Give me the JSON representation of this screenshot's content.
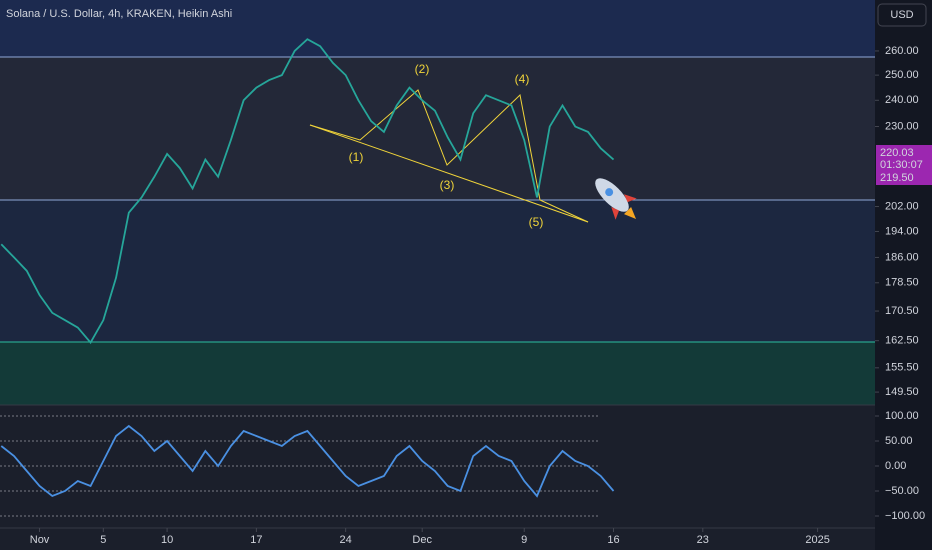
{
  "header": {
    "title": "Solana / U.S. Dollar, 4h, KRAKEN, Heikin Ashi",
    "currency": "USD"
  },
  "price_labels": [
    "220.03",
    "01:30:07",
    "219.50"
  ],
  "annotations": [
    "(1)",
    "(2)",
    "(3)",
    "(4)",
    "(5)"
  ],
  "chart_data": [
    {
      "type": "line",
      "log_scale": true,
      "x": [
        -3,
        -2,
        -1,
        0,
        1,
        2,
        3,
        4,
        5,
        6,
        7,
        8,
        9,
        10,
        11,
        12,
        13,
        14,
        15,
        16,
        17,
        18,
        19,
        20,
        21,
        22,
        23,
        24,
        25,
        26,
        27,
        28,
        29,
        30,
        31,
        32,
        33,
        34,
        35,
        36,
        37,
        38,
        39,
        40,
        41,
        42,
        43,
        44,
        45
      ],
      "series": [
        {
          "color": "#26a69a",
          "values": [
            190,
            186,
            182,
            175,
            170,
            168,
            166,
            162,
            168,
            180,
            200,
            205,
            212,
            220,
            215,
            208,
            218,
            212,
            225,
            240,
            245,
            248,
            250,
            260,
            265,
            262,
            255,
            250,
            240,
            232,
            228,
            238,
            245,
            240,
            236,
            226,
            218,
            235,
            242,
            240,
            238,
            225,
            205,
            230,
            238,
            230,
            228,
            222,
            218
          ]
        }
      ],
      "xlim": [
        -3.1,
        65.5
      ],
      "xticks": [
        {
          "value": 0,
          "label": "Nov"
        },
        5,
        10,
        17,
        24,
        {
          "value": 30,
          "label": "Dec"
        },
        {
          "value": 38,
          "label": "9"
        },
        {
          "value": 45,
          "label": "16"
        },
        {
          "value": 52,
          "label": "23"
        },
        {
          "value": 61,
          "label": "2025"
        }
      ],
      "ylim": [
        146.4,
        282.4
      ],
      "yticks": [
        {
          "value": 260,
          "label": "260.00"
        },
        {
          "value": 250,
          "label": "250.00"
        },
        {
          "value": 240,
          "label": "240.00"
        },
        {
          "value": 230,
          "label": "230.00"
        },
        {
          "value": 202,
          "label": "202.00"
        },
        {
          "value": 194,
          "label": "194.00"
        },
        {
          "value": 186,
          "label": "186.00"
        },
        {
          "value": 178.5,
          "label": "178.50"
        },
        {
          "value": 170.5,
          "label": "170.50"
        },
        {
          "value": 162.5,
          "label": "162.50"
        },
        {
          "value": 155.5,
          "label": "155.50"
        },
        {
          "value": 149.5,
          "label": "149.50"
        }
      ]
    },
    {
      "type": "line",
      "x": [
        -3,
        -2,
        -1,
        0,
        1,
        2,
        3,
        4,
        5,
        6,
        7,
        8,
        9,
        10,
        11,
        12,
        13,
        14,
        15,
        16,
        17,
        18,
        19,
        20,
        21,
        22,
        23,
        24,
        25,
        26,
        27,
        28,
        29,
        30,
        31,
        32,
        33,
        34,
        35,
        36,
        37,
        38,
        39,
        40,
        41,
        42,
        43,
        44,
        45
      ],
      "series": [
        {
          "color": "#4a90e2",
          "values": [
            40,
            20,
            -10,
            -40,
            -60,
            -50,
            -30,
            -40,
            10,
            60,
            80,
            60,
            30,
            50,
            20,
            -10,
            30,
            0,
            40,
            70,
            60,
            50,
            40,
            60,
            70,
            40,
            10,
            -20,
            -40,
            -30,
            -20,
            20,
            40,
            10,
            -10,
            -40,
            -50,
            20,
            40,
            20,
            10,
            -30,
            -60,
            0,
            30,
            10,
            0,
            -20,
            -50
          ]
        }
      ],
      "xlim": [
        -3.1,
        65.5
      ],
      "ylim": [
        -124,
        122
      ],
      "yticks": [
        {
          "value": 100,
          "label": "100.00"
        },
        {
          "value": 50,
          "label": "50.00"
        },
        {
          "value": 0,
          "label": "0.00"
        },
        {
          "value": -50,
          "label": "−50.00"
        },
        {
          "value": -100,
          "label": "−100.00"
        }
      ]
    }
  ]
}
